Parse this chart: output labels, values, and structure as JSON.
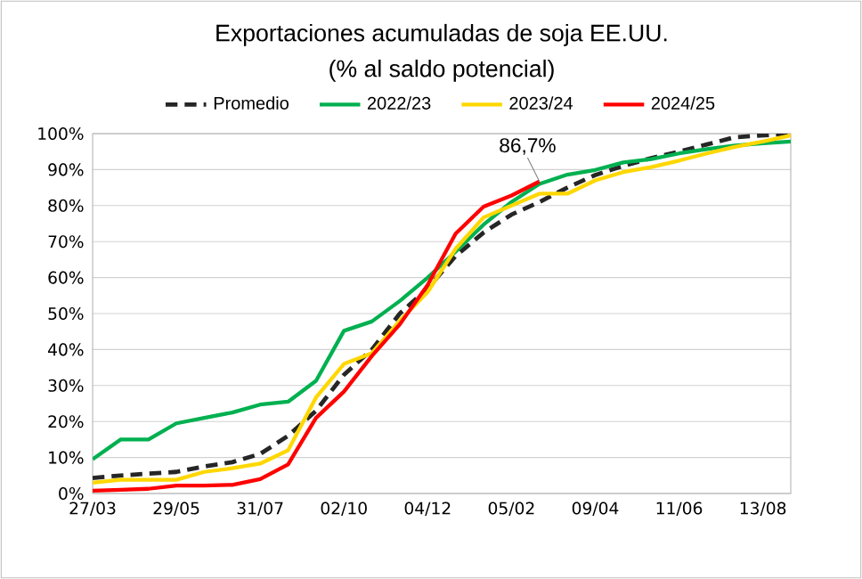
{
  "chart_data": {
    "type": "line",
    "title": "Exportaciones acumuladas de soja EE.UU.",
    "subtitle": "(% al saldo potencial)",
    "categories": [
      "27/03",
      null,
      null,
      "29/05",
      null,
      null,
      "31/07",
      null,
      null,
      "02/10",
      null,
      null,
      "04/12",
      null,
      null,
      "05/02",
      null,
      null,
      "09/04",
      null,
      null,
      "11/06",
      null,
      null,
      "13/08",
      null
    ],
    "ylim": [
      0,
      100
    ],
    "yticks": [
      {
        "value": 0,
        "label": "0%"
      },
      {
        "value": 10,
        "label": "10%"
      },
      {
        "value": 20,
        "label": "20%"
      },
      {
        "value": 30,
        "label": "30%"
      },
      {
        "value": 40,
        "label": "40%"
      },
      {
        "value": 50,
        "label": "50%"
      },
      {
        "value": 60,
        "label": "60%"
      },
      {
        "value": 70,
        "label": "70%"
      },
      {
        "value": 80,
        "label": "80%"
      },
      {
        "value": 90,
        "label": "90%"
      },
      {
        "value": 100,
        "label": "100%"
      }
    ],
    "grid": "y",
    "legend": "top",
    "series": [
      {
        "name": "Promedio",
        "color": "#262626",
        "line_style": "dashed",
        "values": [
          4.3,
          5,
          5.5,
          6,
          7.5,
          8.7,
          11,
          16,
          23,
          33,
          40,
          50,
          57,
          66,
          72.5,
          77.5,
          81,
          85,
          88.5,
          91,
          93.2,
          95,
          97,
          99,
          99.5,
          100
        ]
      },
      {
        "name": "2022/23",
        "color": "#00b050",
        "values": [
          9.5,
          15,
          15,
          19.5,
          21,
          22.5,
          24.7,
          25.5,
          31.3,
          45.2,
          47.8,
          53.5,
          60,
          67.2,
          74.7,
          81,
          86,
          88.6,
          89.9,
          92,
          92.9,
          94.5,
          95.7,
          96.7,
          97.3,
          97.8
        ]
      },
      {
        "name": "2023/24",
        "color": "#ffd700",
        "values": [
          3,
          3.8,
          3.8,
          3.8,
          6,
          7,
          8.3,
          12,
          26.7,
          36,
          39,
          48,
          56,
          68,
          76.7,
          80,
          83.3,
          83.3,
          87,
          89.3,
          90.7,
          92.5,
          94.5,
          96.3,
          97.8,
          99.5
        ]
      },
      {
        "name": "2024/25",
        "color": "#ff0000",
        "values": [
          0.8,
          1,
          1.3,
          2.2,
          2.2,
          2.4,
          4,
          8.1,
          21,
          28.3,
          38.2,
          47,
          58,
          72.2,
          79.7,
          82.8,
          86.7,
          null,
          null,
          null,
          null,
          null,
          null,
          null,
          null,
          null
        ]
      }
    ],
    "annotations": [
      {
        "text": "86,7%",
        "y": 86.7
      }
    ]
  }
}
